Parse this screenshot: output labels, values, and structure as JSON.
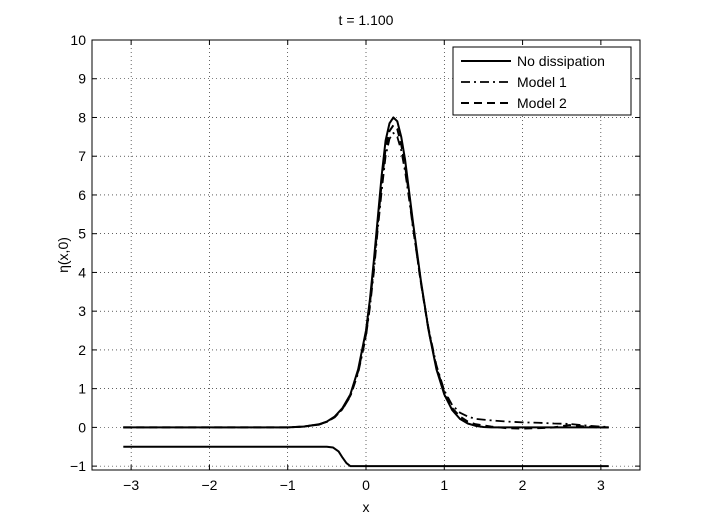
{
  "chart_data": {
    "type": "line",
    "title": "t = 1.100",
    "xlabel": "x",
    "ylabel": "η(x,0)",
    "xlim": [
      -3.5,
      3.5
    ],
    "ylim": [
      -1.1,
      10
    ],
    "xticks": [
      -3,
      -2,
      -1,
      0,
      1,
      2,
      3
    ],
    "yticks": [
      -1,
      0,
      1,
      2,
      3,
      4,
      5,
      6,
      7,
      8,
      9,
      10
    ],
    "xtick_labels": [
      "−3",
      "−2",
      "−1",
      "0",
      "1",
      "2",
      "3"
    ],
    "ytick_labels": [
      "−1",
      "0",
      "1",
      "2",
      "3",
      "4",
      "5",
      "6",
      "7",
      "8",
      "9",
      "10"
    ],
    "grid": true,
    "legend_position": "top-right",
    "series": [
      {
        "name": "No dissipation",
        "style": "solid",
        "color": "#000000",
        "x": [
          -3.1,
          -1.5,
          -1.0,
          -0.8,
          -0.6,
          -0.5,
          -0.4,
          -0.3,
          -0.2,
          -0.1,
          0.0,
          0.05,
          0.1,
          0.15,
          0.2,
          0.25,
          0.3,
          0.35,
          0.4,
          0.45,
          0.5,
          0.55,
          0.6,
          0.7,
          0.8,
          0.9,
          1.0,
          1.1,
          1.2,
          1.3,
          1.4,
          1.5,
          1.6,
          1.8,
          2.0,
          2.2,
          2.4,
          2.6,
          2.8,
          3.0,
          3.1
        ],
        "y": [
          0,
          0,
          0,
          0.02,
          0.08,
          0.15,
          0.28,
          0.5,
          0.85,
          1.5,
          2.5,
          3.3,
          4.3,
          5.4,
          6.5,
          7.4,
          7.85,
          8.0,
          7.9,
          7.5,
          6.9,
          6.1,
          5.3,
          3.8,
          2.5,
          1.5,
          0.85,
          0.45,
          0.22,
          0.1,
          0.04,
          0.01,
          0,
          0,
          0,
          0,
          0,
          0,
          0,
          0,
          0
        ]
      },
      {
        "name": "Model 1",
        "style": "dashdot",
        "color": "#000000",
        "x": [
          -3.1,
          -1.5,
          -1.0,
          -0.8,
          -0.6,
          -0.5,
          -0.4,
          -0.3,
          -0.2,
          -0.1,
          0.0,
          0.05,
          0.1,
          0.15,
          0.2,
          0.25,
          0.3,
          0.35,
          0.4,
          0.45,
          0.5,
          0.55,
          0.6,
          0.7,
          0.8,
          0.9,
          1.0,
          1.1,
          1.2,
          1.3,
          1.4,
          1.6,
          1.8,
          2.0,
          2.2,
          2.4,
          2.6,
          2.8,
          3.0,
          3.1
        ],
        "y": [
          0,
          0,
          0,
          0.02,
          0.07,
          0.14,
          0.26,
          0.47,
          0.8,
          1.4,
          2.35,
          3.1,
          4.0,
          5.1,
          6.1,
          7.0,
          7.45,
          7.6,
          7.5,
          7.15,
          6.6,
          5.9,
          5.15,
          3.75,
          2.55,
          1.6,
          0.95,
          0.58,
          0.38,
          0.28,
          0.22,
          0.18,
          0.15,
          0.13,
          0.12,
          0.1,
          0.09,
          0.05,
          0.02,
          0.01
        ]
      },
      {
        "name": "Model 2",
        "style": "dashed",
        "color": "#000000",
        "x": [
          -3.1,
          -1.5,
          -1.0,
          -0.8,
          -0.6,
          -0.5,
          -0.4,
          -0.3,
          -0.2,
          -0.1,
          0.0,
          0.05,
          0.1,
          0.15,
          0.2,
          0.25,
          0.3,
          0.35,
          0.4,
          0.45,
          0.5,
          0.55,
          0.6,
          0.7,
          0.8,
          0.9,
          1.0,
          1.1,
          1.2,
          1.3,
          1.4,
          1.6,
          1.8,
          2.0,
          2.2,
          2.4,
          2.6,
          2.8,
          3.0,
          3.1
        ],
        "y": [
          0,
          0,
          0,
          0.02,
          0.075,
          0.145,
          0.27,
          0.48,
          0.82,
          1.45,
          2.4,
          3.2,
          4.15,
          5.25,
          6.3,
          7.2,
          7.65,
          7.8,
          7.7,
          7.3,
          6.75,
          6.0,
          5.2,
          3.75,
          2.5,
          1.55,
          0.9,
          0.5,
          0.28,
          0.15,
          0.08,
          0.02,
          -0.02,
          -0.03,
          -0.02,
          0.0,
          0.06,
          0.02,
          0.0,
          0.0
        ]
      },
      {
        "name": "",
        "style": "solid",
        "color": "#000000",
        "x": [
          -3.1,
          -0.5,
          -0.42,
          -0.35,
          -0.3,
          -0.25,
          -0.2,
          3.1
        ],
        "y": [
          -0.5,
          -0.5,
          -0.52,
          -0.62,
          -0.78,
          -0.92,
          -1.0,
          -1.0
        ]
      }
    ]
  }
}
